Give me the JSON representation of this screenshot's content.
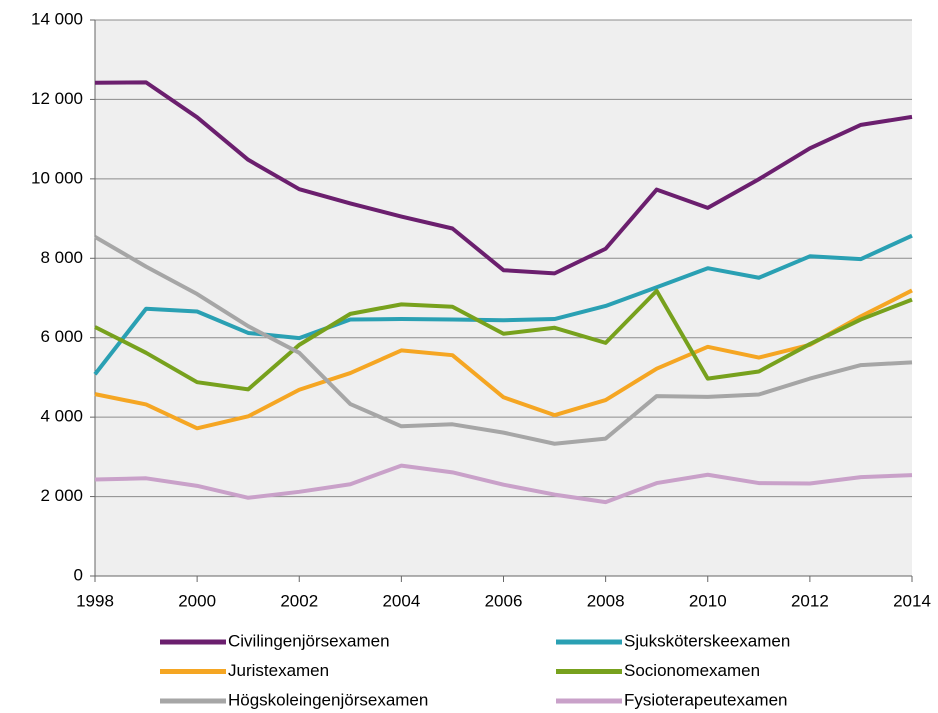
{
  "chart_data": {
    "type": "line",
    "x": [
      1998,
      1999,
      2000,
      2001,
      2002,
      2003,
      2004,
      2005,
      2006,
      2007,
      2008,
      2009,
      2010,
      2011,
      2012,
      2013,
      2014
    ],
    "series": [
      {
        "name": "Civilingenjörsexamen",
        "color": "#6b1f6e",
        "values": [
          12420,
          12430,
          11550,
          10480,
          9740,
          9380,
          9050,
          8750,
          7700,
          7620,
          8240,
          9730,
          9270,
          9990,
          10770,
          11360,
          11560
        ]
      },
      {
        "name": "Sjuksköterskeexamen",
        "color": "#2aa0b3",
        "values": [
          5080,
          6730,
          6660,
          6120,
          5990,
          6460,
          6470,
          6460,
          6440,
          6470,
          6800,
          7270,
          7750,
          7510,
          8050,
          7980,
          8570
        ]
      },
      {
        "name": "Juristexamen",
        "color": "#f5a623",
        "values": [
          4580,
          4320,
          3720,
          4020,
          4690,
          5110,
          5680,
          5560,
          4500,
          4050,
          4430,
          5220,
          5770,
          5500,
          5820,
          6540,
          7190
        ]
      },
      {
        "name": "Socionomexamen",
        "color": "#77a11d",
        "values": [
          6270,
          5620,
          4880,
          4700,
          5820,
          6600,
          6840,
          6780,
          6100,
          6250,
          5870,
          7180,
          4970,
          5150,
          5840,
          6460,
          6960
        ]
      },
      {
        "name": "Högskoleingenjörsexamen",
        "color": "#a6a6a6",
        "values": [
          8540,
          7790,
          7100,
          6290,
          5620,
          4330,
          3770,
          3820,
          3610,
          3330,
          3460,
          4530,
          4510,
          4570,
          4970,
          5310,
          5380
        ]
      },
      {
        "name": "Fysioterapeutexamen",
        "color": "#c9a1c9",
        "values": [
          2430,
          2460,
          2270,
          1970,
          2120,
          2310,
          2780,
          2610,
          2300,
          2050,
          1860,
          2340,
          2550,
          2340,
          2330,
          2490,
          2540
        ]
      }
    ],
    "xlim": [
      1998,
      2014
    ],
    "xticks": [
      1998,
      2000,
      2002,
      2004,
      2006,
      2008,
      2010,
      2012,
      2014
    ],
    "ylim": [
      0,
      14000
    ],
    "yticks": [
      0,
      {
        "value": 2000,
        "label": "2 000"
      },
      {
        "value": 4000,
        "label": "4 000"
      },
      {
        "value": 6000,
        "label": "6 000"
      },
      {
        "value": 8000,
        "label": "8 000"
      },
      {
        "value": 10000,
        "label": "10 000"
      },
      {
        "value": 12000,
        "label": "12 000"
      },
      {
        "value": 14000,
        "label": "14 000"
      }
    ],
    "grid": true,
    "legend": "bottom"
  }
}
